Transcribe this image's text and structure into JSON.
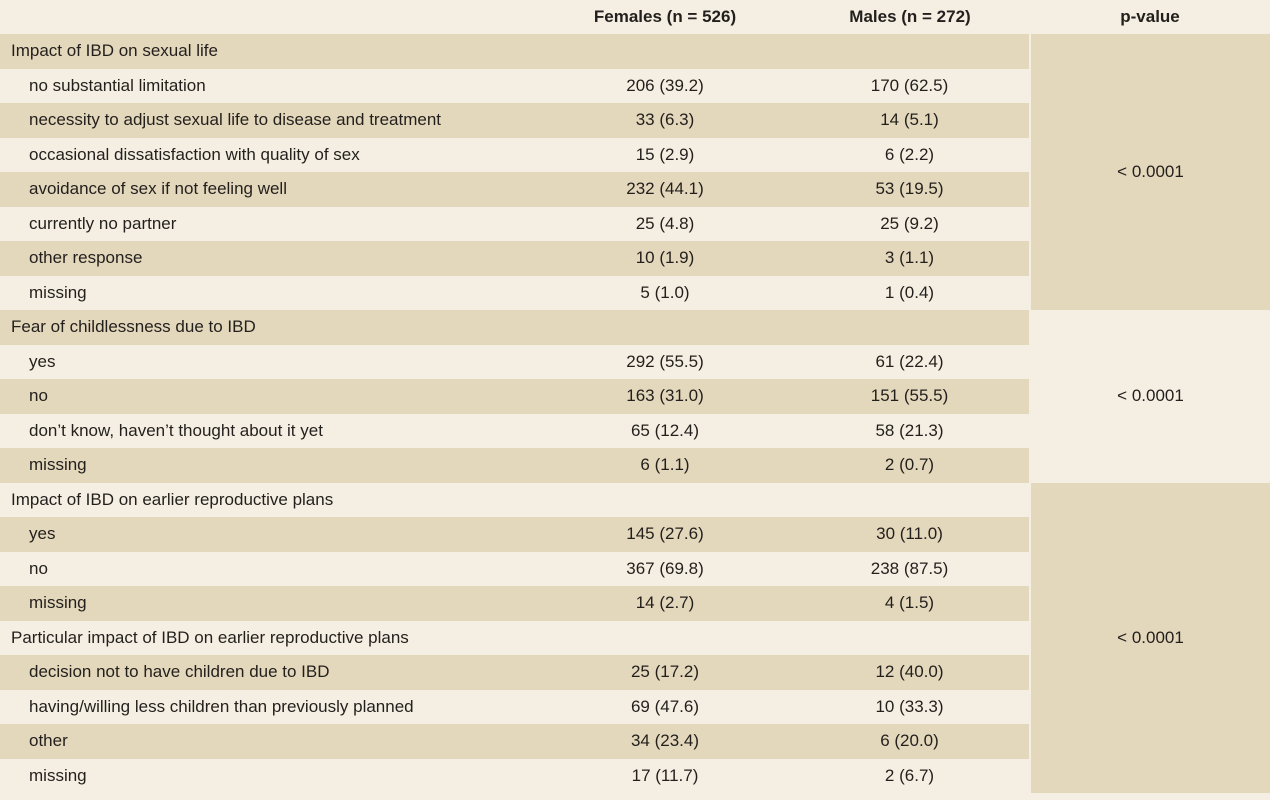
{
  "header": {
    "col_label": "",
    "col_females": "Females (n = 526)",
    "col_males": "Males (n = 272)",
    "col_pvalue": "p-value"
  },
  "sections": [
    {
      "title": "Impact of IBD on sexual life",
      "pvalue": "< 0.0001",
      "rows": [
        {
          "label": "no substantial limitation",
          "females": "206 (39.2)",
          "males": "170 (62.5)"
        },
        {
          "label": "necessity to adjust sexual life to disease and treatment",
          "females": "33 (6.3)",
          "males": "14 (5.1)"
        },
        {
          "label": "occasional dissatisfaction with quality of sex",
          "females": "15 (2.9)",
          "males": "6 (2.2)"
        },
        {
          "label": "avoidance of sex if not feeling well",
          "females": "232 (44.1)",
          "males": "53 (19.5)"
        },
        {
          "label": "currently no partner",
          "females": "25 (4.8)",
          "males": "25 (9.2)"
        },
        {
          "label": "other response",
          "females": "10 (1.9)",
          "males": "3 (1.1)"
        },
        {
          "label": "missing",
          "females": "5 (1.0)",
          "males": "1 (0.4)"
        }
      ]
    },
    {
      "title": "Fear of childlessness due to IBD",
      "pvalue": "< 0.0001",
      "rows": [
        {
          "label": "yes",
          "females": "292 (55.5)",
          "males": "61 (22.4)"
        },
        {
          "label": "no",
          "females": "163 (31.0)",
          "males": "151 (55.5)"
        },
        {
          "label": "don’t know, haven’t thought about it yet",
          "females": "65 (12.4)",
          "males": "58 (21.3)"
        },
        {
          "label": "missing",
          "females": "6 (1.1)",
          "males": "2 (0.7)"
        }
      ]
    },
    {
      "title": "Impact of IBD on earlier reproductive plans",
      "pvalue": "< 0.0001",
      "rows": [
        {
          "label": "yes",
          "females": "145 (27.6)",
          "males": "30 (11.0)"
        },
        {
          "label": "no",
          "females": "367 (69.8)",
          "males": "238 (87.5)"
        },
        {
          "label": "missing",
          "females": "14 (2.7)",
          "males": "4 (1.5)"
        }
      ]
    },
    {
      "title": "Particular impact of IBD on earlier reproductive plans",
      "rows": [
        {
          "label": "decision not to have children due to IBD",
          "females": "25 (17.2)",
          "males": "12 (40.0)"
        },
        {
          "label": "having/willing less children than previously planned",
          "females": "69 (47.6)",
          "males": "10 (33.3)"
        },
        {
          "label": "other",
          "females": "34 (23.4)",
          "males": "6 (20.0)"
        },
        {
          "label": "missing",
          "females": "17 (11.7)",
          "males": "2 (6.7)"
        }
      ]
    }
  ]
}
